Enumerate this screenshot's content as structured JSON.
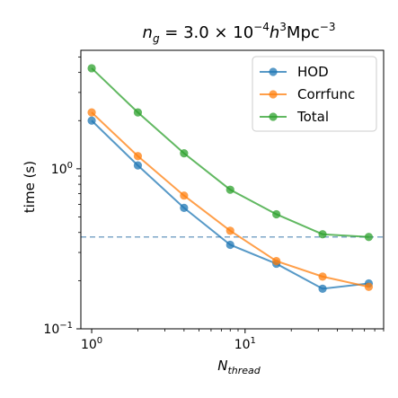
{
  "chart_data": {
    "type": "line",
    "title_parts": {
      "base": "n",
      "base_sub": "g",
      "eq": " = 3.0 × 10",
      "exp1": "−4",
      "mid": "h",
      "exp2": "3",
      "unit": "Mpc",
      "exp3": "−3"
    },
    "xlabel_base": "N",
    "xlabel_sub": "thread",
    "ylabel": "time (s)",
    "xscale": "log",
    "yscale": "log",
    "xlim": [
      0.85,
      80
    ],
    "ylim": [
      0.1,
      5.5
    ],
    "x_ticks": [
      {
        "value": 1,
        "base": "10",
        "exp": "0"
      },
      {
        "value": 10,
        "base": "10",
        "exp": "1"
      }
    ],
    "y_ticks": [
      {
        "value": 0.1,
        "base": "10",
        "exp": "−1"
      },
      {
        "value": 1,
        "base": "10",
        "exp": "0"
      }
    ],
    "x": [
      1,
      2,
      4,
      8,
      16,
      32,
      64
    ],
    "series": [
      {
        "name": "HOD",
        "color": "#1f77b4",
        "values": [
          2.0,
          1.05,
          0.57,
          0.335,
          0.255,
          0.178,
          0.192
        ]
      },
      {
        "name": "Corrfunc",
        "color": "#ff7f0e",
        "values": [
          2.25,
          1.2,
          0.68,
          0.41,
          0.265,
          0.212,
          0.183
        ]
      },
      {
        "name": "Total",
        "color": "#2ca02c",
        "values": [
          4.25,
          2.25,
          1.25,
          0.74,
          0.52,
          0.39,
          0.375
        ]
      }
    ],
    "hline": {
      "y": 0.375,
      "color": "#7fa7c9",
      "style": "dashed"
    },
    "grid": false,
    "legend_position": "top-right"
  }
}
